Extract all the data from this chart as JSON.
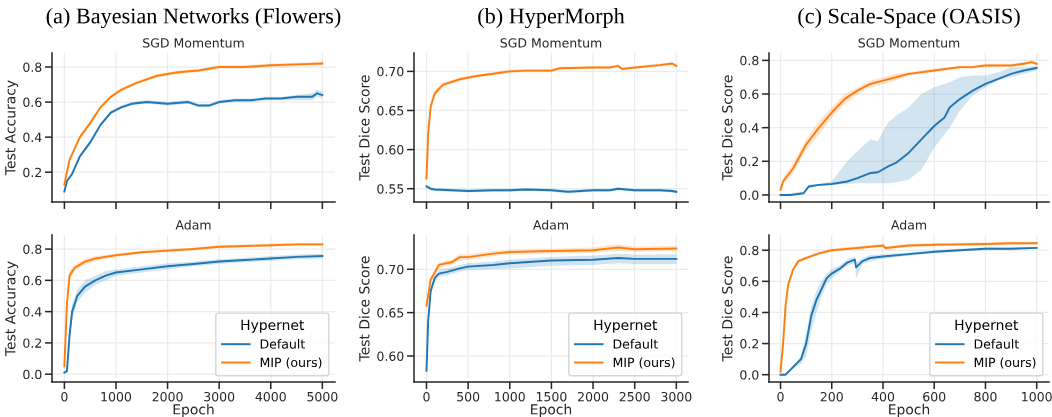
{
  "chart_data": [
    {
      "type": "line",
      "title": "(a) Bayesian Networks (Flowers)",
      "subtitle": "SGD Momentum",
      "ylabel": "Test Accuracy",
      "xlim": [
        -240,
        5245
      ],
      "xticks": [
        0,
        1000,
        2000,
        3000,
        4000,
        5000
      ],
      "ylim": [
        0.03,
        0.88
      ],
      "yticks": [
        0.2,
        0.4,
        0.6,
        0.8
      ],
      "tick_labels": "y",
      "grid": true,
      "series": [
        {
          "color": "#1f77b4",
          "x": [
            0,
            50,
            150,
            300,
            500,
            700,
            900,
            1100,
            1300,
            1600,
            2000,
            2400,
            2600,
            2800,
            3000,
            3300,
            3600,
            3900,
            4200,
            4500,
            4800,
            4900,
            5000
          ],
          "values": [
            0.09,
            0.15,
            0.19,
            0.29,
            0.37,
            0.47,
            0.54,
            0.57,
            0.59,
            0.6,
            0.59,
            0.6,
            0.58,
            0.58,
            0.6,
            0.61,
            0.61,
            0.62,
            0.62,
            0.63,
            0.63,
            0.65,
            0.64
          ],
          "lower": [
            0.08,
            0.14,
            0.18,
            0.28,
            0.36,
            0.46,
            0.53,
            0.56,
            0.58,
            0.59,
            0.58,
            0.59,
            0.57,
            0.57,
            0.59,
            0.6,
            0.6,
            0.61,
            0.61,
            0.61,
            0.61,
            0.63,
            0.62
          ],
          "upper": [
            0.1,
            0.16,
            0.2,
            0.3,
            0.38,
            0.48,
            0.55,
            0.58,
            0.6,
            0.61,
            0.6,
            0.61,
            0.59,
            0.59,
            0.61,
            0.62,
            0.62,
            0.63,
            0.63,
            0.64,
            0.65,
            0.67,
            0.66
          ]
        },
        {
          "color": "#ff7f0e",
          "x": [
            0,
            100,
            300,
            500,
            700,
            900,
            1100,
            1400,
            1800,
            2200,
            2600,
            3000,
            3500,
            4000,
            4500,
            5000
          ],
          "values": [
            0.13,
            0.27,
            0.4,
            0.48,
            0.57,
            0.63,
            0.67,
            0.71,
            0.75,
            0.77,
            0.78,
            0.8,
            0.8,
            0.81,
            0.815,
            0.82
          ],
          "lower": [
            0.12,
            0.26,
            0.39,
            0.47,
            0.56,
            0.62,
            0.66,
            0.7,
            0.74,
            0.76,
            0.77,
            0.79,
            0.79,
            0.8,
            0.805,
            0.81
          ],
          "upper": [
            0.14,
            0.28,
            0.41,
            0.49,
            0.58,
            0.64,
            0.68,
            0.72,
            0.76,
            0.78,
            0.79,
            0.81,
            0.81,
            0.82,
            0.825,
            0.83
          ]
        }
      ]
    },
    {
      "type": "line",
      "title": "(b) HyperMorph",
      "subtitle": "SGD Momentum",
      "ylabel": "Test Dice Score",
      "xlim": [
        -150,
        3140
      ],
      "xticks": [
        0,
        500,
        1000,
        1500,
        2000,
        2500,
        3000
      ],
      "ylim": [
        0.533,
        0.7235
      ],
      "yticks": [
        0.55,
        {
          "value": 0.6,
          "label": "0.60"
        },
        0.65,
        {
          "value": 0.7,
          "label": "0.70"
        }
      ],
      "tick_labels": "y",
      "grid": true,
      "series": [
        {
          "color": "#1f77b4",
          "x": [
            0,
            50,
            100,
            300,
            500,
            800,
            1000,
            1200,
            1500,
            1700,
            2000,
            2200,
            2300,
            2500,
            2800,
            2950,
            3000
          ],
          "values": [
            0.553,
            0.55,
            0.549,
            0.548,
            0.547,
            0.548,
            0.548,
            0.549,
            0.548,
            0.546,
            0.548,
            0.548,
            0.55,
            0.548,
            0.548,
            0.547,
            0.546
          ],
          "lower": [
            0.551,
            0.548,
            0.547,
            0.546,
            0.545,
            0.546,
            0.546,
            0.547,
            0.546,
            0.544,
            0.546,
            0.546,
            0.548,
            0.546,
            0.546,
            0.545,
            0.544
          ],
          "upper": [
            0.555,
            0.552,
            0.551,
            0.55,
            0.549,
            0.55,
            0.55,
            0.551,
            0.55,
            0.548,
            0.55,
            0.55,
            0.552,
            0.55,
            0.55,
            0.549,
            0.548
          ]
        },
        {
          "color": "#ff7f0e",
          "x": [
            0,
            20,
            50,
            100,
            200,
            400,
            600,
            800,
            1000,
            1200,
            1500,
            1600,
            2000,
            2200,
            2300,
            2350,
            2500,
            2800,
            2950,
            3000
          ],
          "values": [
            0.563,
            0.62,
            0.655,
            0.672,
            0.683,
            0.69,
            0.694,
            0.697,
            0.7,
            0.701,
            0.701,
            0.704,
            0.705,
            0.705,
            0.707,
            0.703,
            0.705,
            0.708,
            0.71,
            0.707
          ],
          "lower": [
            0.56,
            0.615,
            0.65,
            0.668,
            0.68,
            0.688,
            0.692,
            0.695,
            0.698,
            0.699,
            0.699,
            0.702,
            0.703,
            0.703,
            0.705,
            0.701,
            0.703,
            0.706,
            0.708,
            0.705
          ],
          "upper": [
            0.566,
            0.625,
            0.66,
            0.676,
            0.686,
            0.692,
            0.696,
            0.699,
            0.702,
            0.703,
            0.703,
            0.706,
            0.707,
            0.707,
            0.709,
            0.705,
            0.707,
            0.71,
            0.712,
            0.709
          ]
        }
      ]
    },
    {
      "type": "line",
      "title": "(c) Scale-Space (OASIS)",
      "subtitle": "SGD Momentum",
      "ylabel": "Test Dice Score",
      "xlim": [
        -45,
        1048
      ],
      "xticks": [
        0,
        200,
        400,
        600,
        800,
        1000
      ],
      "ylim": [
        -0.042,
        0.844
      ],
      "yticks": [
        {
          "value": 0,
          "label": "0.0"
        },
        0.2,
        0.4,
        0.6,
        0.8
      ],
      "tick_labels": "y",
      "grid": true,
      "series": [
        {
          "color": "#1f77b4",
          "x": [
            0,
            40,
            90,
            110,
            150,
            200,
            260,
            300,
            350,
            380,
            420,
            450,
            500,
            550,
            600,
            640,
            660,
            700,
            750,
            800,
            850,
            900,
            950,
            1000
          ],
          "values": [
            0,
            0,
            0.01,
            0.05,
            0.06,
            0.065,
            0.08,
            0.1,
            0.13,
            0.135,
            0.17,
            0.19,
            0.25,
            0.33,
            0.41,
            0.46,
            0.52,
            0.57,
            0.62,
            0.66,
            0.69,
            0.72,
            0.74,
            0.755
          ],
          "lower": [
            0,
            0,
            0.005,
            0.04,
            0.055,
            0.06,
            0.065,
            0.07,
            0.07,
            0.07,
            0.07,
            0.075,
            0.09,
            0.15,
            0.28,
            0.36,
            0.4,
            0.5,
            0.59,
            0.64,
            0.68,
            0.7,
            0.72,
            0.74
          ],
          "upper": [
            0,
            0.01,
            0.02,
            0.06,
            0.065,
            0.08,
            0.2,
            0.26,
            0.33,
            0.32,
            0.43,
            0.47,
            0.52,
            0.6,
            0.64,
            0.66,
            0.67,
            0.7,
            0.71,
            0.71,
            0.73,
            0.76,
            0.76,
            0.77
          ]
        },
        {
          "color": "#ff7f0e",
          "x": [
            0,
            10,
            50,
            100,
            150,
            200,
            250,
            300,
            350,
            400,
            450,
            500,
            550,
            600,
            650,
            700,
            750,
            800,
            850,
            900,
            950,
            980,
            1000
          ],
          "values": [
            0.03,
            0.08,
            0.16,
            0.3,
            0.4,
            0.49,
            0.57,
            0.62,
            0.66,
            0.68,
            0.7,
            0.72,
            0.73,
            0.74,
            0.75,
            0.76,
            0.76,
            0.77,
            0.77,
            0.77,
            0.78,
            0.79,
            0.78
          ],
          "lower": [
            0.02,
            0.06,
            0.13,
            0.27,
            0.36,
            0.46,
            0.54,
            0.6,
            0.64,
            0.66,
            0.68,
            0.71,
            0.72,
            0.73,
            0.74,
            0.75,
            0.75,
            0.76,
            0.76,
            0.76,
            0.77,
            0.78,
            0.77
          ],
          "upper": [
            0.04,
            0.1,
            0.19,
            0.33,
            0.44,
            0.52,
            0.6,
            0.64,
            0.68,
            0.7,
            0.72,
            0.73,
            0.74,
            0.75,
            0.76,
            0.77,
            0.77,
            0.78,
            0.78,
            0.78,
            0.79,
            0.8,
            0.79
          ]
        }
      ]
    },
    {
      "type": "line",
      "title": "Adam",
      "xlabel": "Epoch",
      "ylabel": "Test Accuracy",
      "xlim": [
        -240,
        5245
      ],
      "xticks": [
        0,
        1000,
        2000,
        3000,
        4000,
        5000
      ],
      "ylim": [
        -0.05,
        0.89
      ],
      "yticks": [
        {
          "value": 0,
          "label": "0.0"
        },
        0.2,
        0.4,
        0.6,
        0.8
      ],
      "grid": true,
      "legend": "lower right",
      "legend_title": "Hypernet",
      "series": [
        {
          "name": "Default",
          "color": "#1f77b4",
          "x": [
            0,
            50,
            100,
            150,
            250,
            400,
            600,
            800,
            1000,
            1500,
            2000,
            2500,
            3000,
            3500,
            4000,
            4500,
            5000
          ],
          "values": [
            0.01,
            0.02,
            0.25,
            0.4,
            0.5,
            0.56,
            0.6,
            0.63,
            0.65,
            0.67,
            0.69,
            0.705,
            0.72,
            0.73,
            0.74,
            0.75,
            0.755
          ],
          "lower": [
            0.005,
            0.01,
            0.2,
            0.35,
            0.46,
            0.52,
            0.57,
            0.6,
            0.63,
            0.65,
            0.67,
            0.69,
            0.705,
            0.715,
            0.725,
            0.735,
            0.74
          ],
          "upper": [
            0.015,
            0.03,
            0.3,
            0.45,
            0.54,
            0.6,
            0.63,
            0.66,
            0.67,
            0.69,
            0.71,
            0.72,
            0.735,
            0.745,
            0.755,
            0.765,
            0.77
          ]
        },
        {
          "name": "MIP (ours)",
          "color": "#ff7f0e",
          "x": [
            0,
            50,
            100,
            200,
            400,
            600,
            1000,
            1500,
            2000,
            2500,
            3000,
            3500,
            4000,
            4500,
            5000
          ],
          "values": [
            0.05,
            0.45,
            0.63,
            0.68,
            0.72,
            0.74,
            0.76,
            0.78,
            0.79,
            0.8,
            0.815,
            0.82,
            0.825,
            0.83,
            0.83
          ],
          "lower": [
            0.04,
            0.4,
            0.6,
            0.66,
            0.7,
            0.725,
            0.75,
            0.77,
            0.78,
            0.79,
            0.805,
            0.81,
            0.815,
            0.82,
            0.82
          ],
          "upper": [
            0.06,
            0.5,
            0.66,
            0.7,
            0.74,
            0.755,
            0.77,
            0.79,
            0.8,
            0.81,
            0.825,
            0.83,
            0.835,
            0.84,
            0.84
          ]
        }
      ]
    },
    {
      "type": "line",
      "title": "Adam",
      "xlabel": "Epoch",
      "ylabel": "Test Dice Score",
      "xlim": [
        -150,
        3140
      ],
      "xticks": [
        0,
        500,
        1000,
        1500,
        2000,
        2500,
        3000
      ],
      "ylim": [
        0.57,
        0.7395
      ],
      "yticks": [
        {
          "value": 0.6,
          "label": "0.60"
        },
        0.65,
        {
          "value": 0.7,
          "label": "0.70"
        }
      ],
      "grid": true,
      "legend": "lower right",
      "legend_title": "Hypernet",
      "series": [
        {
          "name": "Default",
          "color": "#1f77b4",
          "x": [
            0,
            20,
            50,
            100,
            150,
            250,
            400,
            500,
            800,
            1000,
            1500,
            2000,
            2300,
            2500,
            3000
          ],
          "values": [
            0.583,
            0.64,
            0.675,
            0.69,
            0.695,
            0.697,
            0.701,
            0.703,
            0.705,
            0.707,
            0.71,
            0.711,
            0.713,
            0.712,
            0.712
          ],
          "lower": [
            0.58,
            0.635,
            0.67,
            0.686,
            0.691,
            0.693,
            0.697,
            0.699,
            0.7,
            0.701,
            0.704,
            0.705,
            0.707,
            0.706,
            0.706
          ],
          "upper": [
            0.586,
            0.645,
            0.68,
            0.694,
            0.699,
            0.701,
            0.705,
            0.707,
            0.709,
            0.711,
            0.714,
            0.716,
            0.718,
            0.717,
            0.717
          ]
        },
        {
          "name": "MIP (ours)",
          "color": "#ff7f0e",
          "x": [
            0,
            50,
            150,
            300,
            400,
            500,
            800,
            1000,
            1500,
            2000,
            2300,
            2500,
            3000
          ],
          "values": [
            0.658,
            0.688,
            0.705,
            0.708,
            0.714,
            0.714,
            0.718,
            0.72,
            0.721,
            0.722,
            0.725,
            0.723,
            0.724
          ],
          "lower": [
            0.655,
            0.685,
            0.702,
            0.705,
            0.71,
            0.711,
            0.715,
            0.717,
            0.718,
            0.719,
            0.721,
            0.72,
            0.721
          ],
          "upper": [
            0.661,
            0.691,
            0.708,
            0.711,
            0.718,
            0.717,
            0.721,
            0.723,
            0.724,
            0.725,
            0.729,
            0.726,
            0.727
          ]
        }
      ]
    },
    {
      "type": "line",
      "title": "Adam",
      "xlabel": "Epoch",
      "ylabel": "Test Dice Score",
      "xlim": [
        -45,
        1048
      ],
      "xticks": [
        0,
        200,
        400,
        600,
        800,
        1000
      ],
      "ylim": [
        -0.047,
        0.898
      ],
      "yticks": [
        {
          "value": 0,
          "label": "0.0"
        },
        0.2,
        0.4,
        0.6,
        0.8
      ],
      "grid": true,
      "legend": "lower right",
      "legend_title": "Hypernet",
      "series": [
        {
          "name": "Default",
          "color": "#1f77b4",
          "x": [
            0,
            10,
            20,
            50,
            80,
            100,
            120,
            140,
            160,
            180,
            200,
            230,
            260,
            290,
            295,
            320,
            350,
            400,
            500,
            600,
            700,
            800,
            900,
            1000
          ],
          "values": [
            0,
            0,
            0,
            0.05,
            0.1,
            0.2,
            0.38,
            0.48,
            0.55,
            0.62,
            0.65,
            0.68,
            0.72,
            0.74,
            0.69,
            0.73,
            0.75,
            0.76,
            0.775,
            0.79,
            0.8,
            0.81,
            0.81,
            0.815
          ],
          "lower": [
            0,
            0,
            0,
            0.04,
            0.07,
            0.12,
            0.28,
            0.4,
            0.5,
            0.58,
            0.62,
            0.66,
            0.7,
            0.72,
            0.62,
            0.71,
            0.73,
            0.745,
            0.765,
            0.78,
            0.79,
            0.8,
            0.8,
            0.81
          ],
          "upper": [
            0,
            0.01,
            0.01,
            0.06,
            0.12,
            0.26,
            0.44,
            0.54,
            0.6,
            0.65,
            0.68,
            0.7,
            0.74,
            0.76,
            0.72,
            0.75,
            0.77,
            0.775,
            0.785,
            0.8,
            0.81,
            0.82,
            0.82,
            0.82
          ]
        },
        {
          "name": "MIP (ours)",
          "color": "#ff7f0e",
          "x": [
            0,
            10,
            20,
            30,
            50,
            70,
            100,
            150,
            200,
            300,
            400,
            410,
            500,
            600,
            800,
            900,
            1000
          ],
          "values": [
            0.02,
            0.2,
            0.45,
            0.58,
            0.68,
            0.73,
            0.75,
            0.78,
            0.8,
            0.815,
            0.83,
            0.815,
            0.83,
            0.835,
            0.84,
            0.845,
            0.845
          ],
          "lower": [
            0.01,
            0.17,
            0.42,
            0.56,
            0.67,
            0.72,
            0.74,
            0.77,
            0.79,
            0.805,
            0.82,
            0.805,
            0.82,
            0.825,
            0.83,
            0.835,
            0.835
          ],
          "upper": [
            0.03,
            0.23,
            0.48,
            0.6,
            0.69,
            0.74,
            0.76,
            0.79,
            0.81,
            0.825,
            0.84,
            0.825,
            0.84,
            0.845,
            0.85,
            0.855,
            0.855
          ]
        }
      ]
    }
  ]
}
